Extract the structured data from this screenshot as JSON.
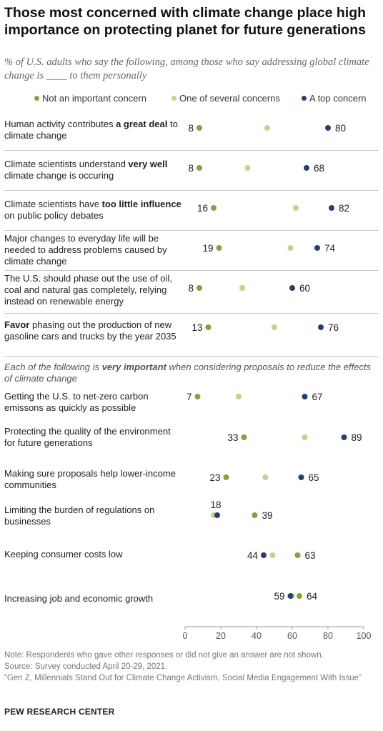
{
  "title": "Those most concerned with climate change place high importance on protecting planet for future generations",
  "subtitle": "% of U.S. adults who say the following, among those who say addressing global climate change is ____ to them personally",
  "colors": {
    "not_important": "#8c9d44",
    "one_of_several": "#c7d18c",
    "top_concern": "#26406b"
  },
  "section_note": {
    "pre": "Each of the following is ",
    "bold": "very important",
    "post": " when considering proposals to reduce the effects of climate change"
  },
  "chart_data": {
    "type": "scatter",
    "xlim": [
      0,
      100
    ],
    "x_ticks": [
      "0",
      "20",
      "40",
      "60",
      "80",
      "100"
    ],
    "legend": [
      "Not an important concern",
      "One of several concerns",
      "A top concern"
    ],
    "legend_position": "top",
    "grid": false,
    "items": [
      {
        "label_parts": [
          {
            "t": "Human activity contributes ",
            "b": false
          },
          {
            "t": "a great deal",
            "b": true
          },
          {
            "t": " to climate change",
            "b": false
          }
        ],
        "not_important": 8,
        "one_of_several": 46,
        "top_concern": 80
      },
      {
        "label_parts": [
          {
            "t": "Climate scientists understand ",
            "b": false
          },
          {
            "t": "very well",
            "b": true
          },
          {
            "t": " climate change is occuring",
            "b": false
          }
        ],
        "not_important": 8,
        "one_of_several": 35,
        "top_concern": 68
      },
      {
        "label_parts": [
          {
            "t": "Climate scientists have ",
            "b": false
          },
          {
            "t": "too little influence",
            "b": true
          },
          {
            "t": " on public policy debates",
            "b": false
          }
        ],
        "not_important": 16,
        "one_of_several": 62,
        "top_concern": 82
      },
      {
        "label_parts": [
          {
            "t": "Major changes to everyday life will be needed to address problems caused by climate change",
            "b": false
          }
        ],
        "not_important": 19,
        "one_of_several": 59,
        "top_concern": 74
      },
      {
        "label_parts": [
          {
            "t": "The U.S. should phase out the use of oil, coal and natural gas completely, relying instead on renewable energy",
            "b": false
          }
        ],
        "not_important": 8,
        "one_of_several": 32,
        "top_concern": 60
      },
      {
        "label_parts": [
          {
            "t": "Favor",
            "b": true
          },
          {
            "t": " phasing out the production of new gasoline cars and trucks by the year 2035",
            "b": false
          }
        ],
        "not_important": 13,
        "one_of_several": 50,
        "top_concern": 76
      },
      {
        "label_parts": [
          {
            "t": "Getting the U.S. to net-zero carbon emissons as quickly as possible",
            "b": false
          }
        ],
        "not_important": 7,
        "one_of_several": 30,
        "top_concern": 67
      },
      {
        "label_parts": [
          {
            "t": "Protecting the quality of the environment for future generations",
            "b": false
          }
        ],
        "not_important": 33,
        "one_of_several": 67,
        "top_concern": 89
      },
      {
        "label_parts": [
          {
            "t": "Making sure proposals help lower-income communities",
            "b": false
          }
        ],
        "not_important": 23,
        "one_of_several": 45,
        "top_concern": 65
      },
      {
        "label_parts": [
          {
            "t": "Limiting the burden of regulations on businesses",
            "b": false
          }
        ],
        "not_important": 39,
        "one_of_several": 16,
        "top_concern": 18
      },
      {
        "label_parts": [
          {
            "t": "Keeping consumer costs low",
            "b": false
          }
        ],
        "not_important": 63,
        "one_of_several": 49,
        "top_concern": 44
      },
      {
        "label_parts": [
          {
            "t": "Increasing job and economic growth",
            "b": false
          }
        ],
        "not_important": 64,
        "one_of_several": 60,
        "top_concern": 59
      }
    ],
    "value_labels": [
      {
        "left": "8",
        "right": "80"
      },
      {
        "left": "8",
        "right": "68"
      },
      {
        "left": "16",
        "right": "82"
      },
      {
        "left": "19",
        "right": "74"
      },
      {
        "left": "8",
        "right": "60"
      },
      {
        "left": "13",
        "right": "76"
      },
      {
        "left": "7",
        "right": "67"
      },
      {
        "left": "33",
        "right": "89"
      },
      {
        "left": "23",
        "right": "65"
      },
      {
        "above": "18",
        "right": "39"
      },
      {
        "left": "44",
        "right": "63"
      },
      {
        "left": "59",
        "right": "64"
      }
    ]
  },
  "footer": {
    "note": "Note: Respondents who gave other responses or did not give an answer are not shown.",
    "source": "Source: Survey conducted April 20-29, 2021.",
    "report": "“Gen Z, Millennials Stand Out for Climate Change Activism, Social Media Engagement With Issue”",
    "brand": "PEW RESEARCH CENTER"
  }
}
